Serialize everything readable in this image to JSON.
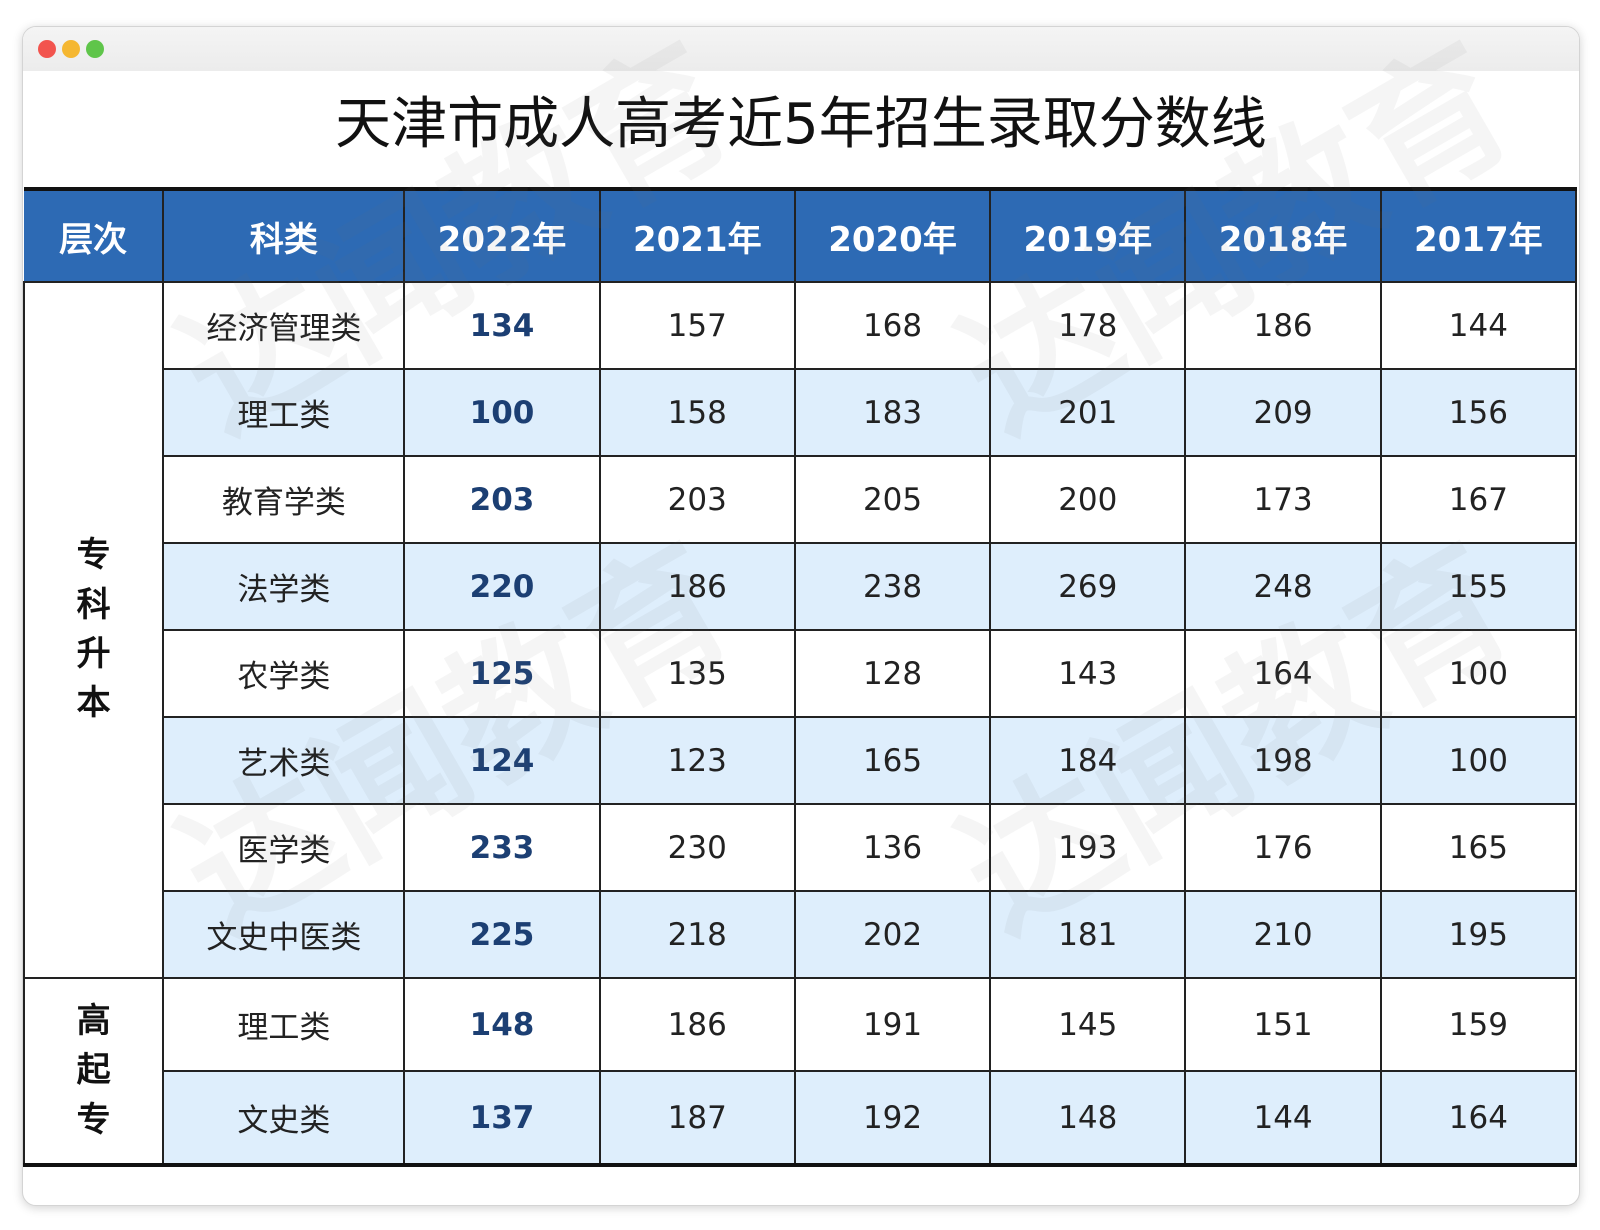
{
  "window": {
    "controls": [
      "close",
      "minimize",
      "maximize"
    ]
  },
  "title": "天津市成人高考近5年招生录取分数线",
  "watermark": "达闻教育",
  "table": {
    "headers": [
      "层次",
      "科类",
      "2022年",
      "2021年",
      "2020年",
      "2019年",
      "2018年",
      "2017年"
    ],
    "groups": [
      {
        "level": "专\n科\n升\n本",
        "rows": [
          {
            "category": "经济管理类",
            "scores": [
              "134",
              "157",
              "168",
              "178",
              "186",
              "144"
            ]
          },
          {
            "category": "理工类",
            "scores": [
              "100",
              "158",
              "183",
              "201",
              "209",
              "156"
            ]
          },
          {
            "category": "教育学类",
            "scores": [
              "203",
              "203",
              "205",
              "200",
              "173",
              "167"
            ]
          },
          {
            "category": "法学类",
            "scores": [
              "220",
              "186",
              "238",
              "269",
              "248",
              "155"
            ]
          },
          {
            "category": "农学类",
            "scores": [
              "125",
              "135",
              "128",
              "143",
              "164",
              "100"
            ]
          },
          {
            "category": "艺术类",
            "scores": [
              "124",
              "123",
              "165",
              "184",
              "198",
              "100"
            ]
          },
          {
            "category": "医学类",
            "scores": [
              "233",
              "230",
              "136",
              "193",
              "176",
              "165"
            ]
          },
          {
            "category": "文史中医类",
            "scores": [
              "225",
              "218",
              "202",
              "181",
              "210",
              "195"
            ]
          }
        ]
      },
      {
        "level": "高\n起\n专",
        "rows": [
          {
            "category": "理工类",
            "scores": [
              "148",
              "186",
              "191",
              "145",
              "151",
              "159"
            ]
          },
          {
            "category": "文史类",
            "scores": [
              "137",
              "187",
              "192",
              "148",
              "144",
              "164"
            ]
          }
        ]
      }
    ]
  }
}
